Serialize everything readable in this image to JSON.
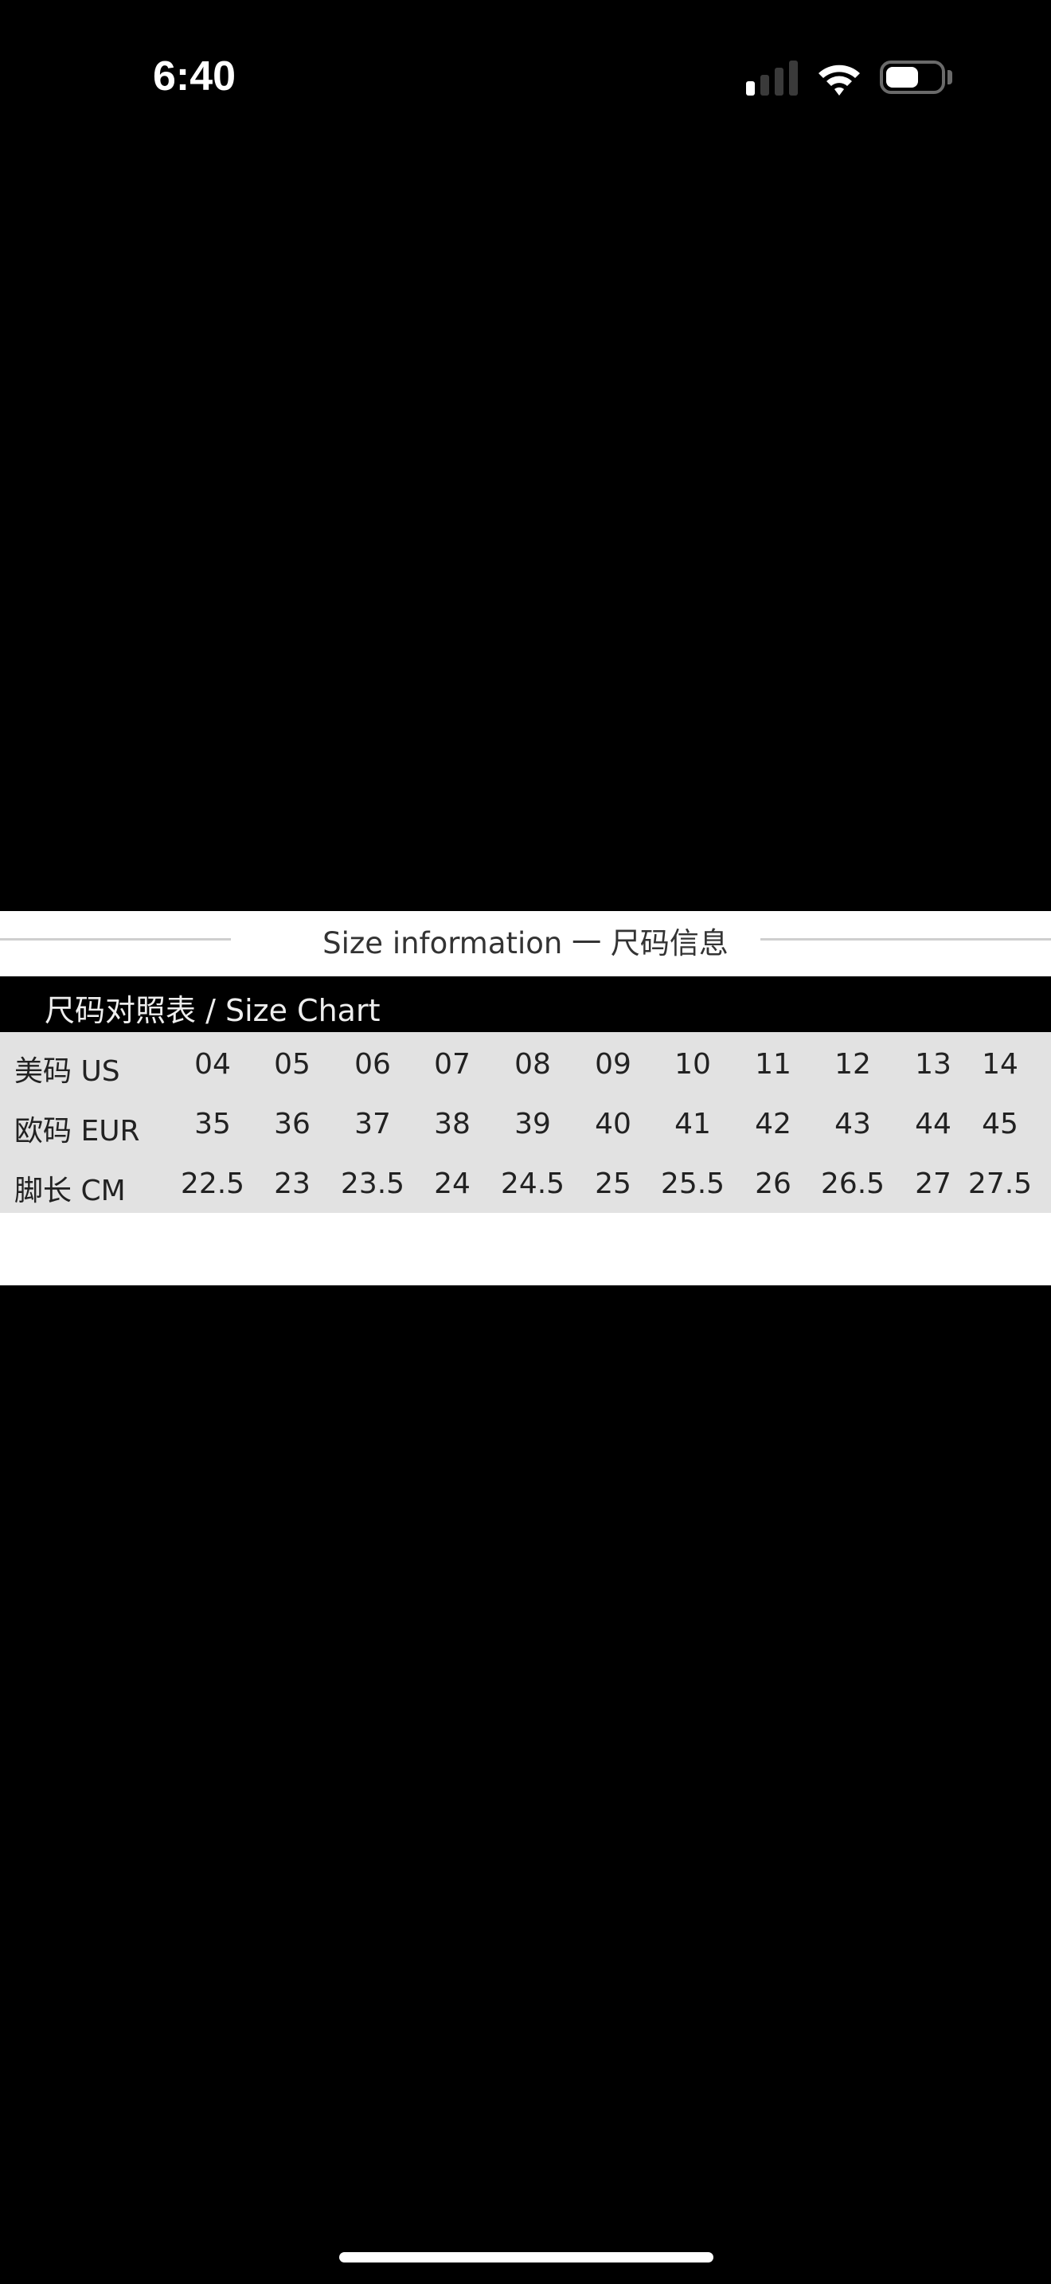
{
  "status_bar": {
    "time": "6:40",
    "signal_bars_active": 1,
    "signal_bars_total": 4,
    "wifi_icon": "wifi-icon",
    "battery_level_percent": 60
  },
  "size_info": {
    "title": "Size information 一 尺码信息",
    "chart_title": "尺码对照表 / Size Chart",
    "rows": [
      {
        "label": "美码  US",
        "values": [
          "04",
          "05",
          "06",
          "07",
          "08",
          "09",
          "10",
          "11",
          "12",
          "13",
          "14"
        ]
      },
      {
        "label": "欧码 EUR",
        "values": [
          "35",
          "36",
          "37",
          "38",
          "39",
          "40",
          "41",
          "42",
          "43",
          "44",
          "45"
        ]
      },
      {
        "label": "脚长  CM",
        "values": [
          "22.5",
          "23",
          "23.5",
          "24",
          "24.5",
          "25",
          "25.5",
          "26",
          "26.5",
          "27",
          "27.5"
        ]
      }
    ]
  },
  "colors": {
    "background": "#000000",
    "table_bg": "#e2e2e2",
    "text": "#222222"
  }
}
